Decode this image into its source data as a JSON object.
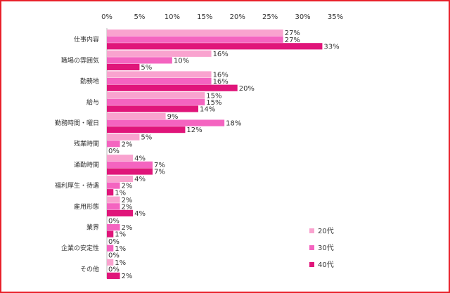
{
  "chart_data": {
    "type": "bar",
    "orientation": "horizontal",
    "xlim": [
      0,
      35
    ],
    "ticks": [
      0,
      5,
      10,
      15,
      20,
      25,
      30,
      35
    ],
    "tick_labels": [
      "0%",
      "5%",
      "10%",
      "15%",
      "20%",
      "25%",
      "30%",
      "35%"
    ],
    "value_suffix": "%",
    "legend_position": "bottom-right",
    "grid": false,
    "categories": [
      "仕事内容",
      "職場の雰囲気",
      "勤務地",
      "給与",
      "勤務時間・曜日",
      "残業時間",
      "通勤時間",
      "福利厚生・待遇",
      "雇用形態",
      "業界",
      "企業の安定性",
      "その他"
    ],
    "series": [
      {
        "name": "20代",
        "color": "#f9a3cf",
        "values": [
          27,
          16,
          16,
          15,
          9,
          5,
          4,
          4,
          2,
          0,
          0,
          1
        ]
      },
      {
        "name": "30代",
        "color": "#f464c0",
        "values": [
          27,
          10,
          16,
          15,
          18,
          2,
          7,
          2,
          2,
          2,
          1,
          0
        ]
      },
      {
        "name": "40代",
        "color": "#e0157a",
        "values": [
          33,
          5,
          20,
          14,
          12,
          0,
          7,
          1,
          4,
          1,
          0,
          2
        ]
      }
    ]
  }
}
